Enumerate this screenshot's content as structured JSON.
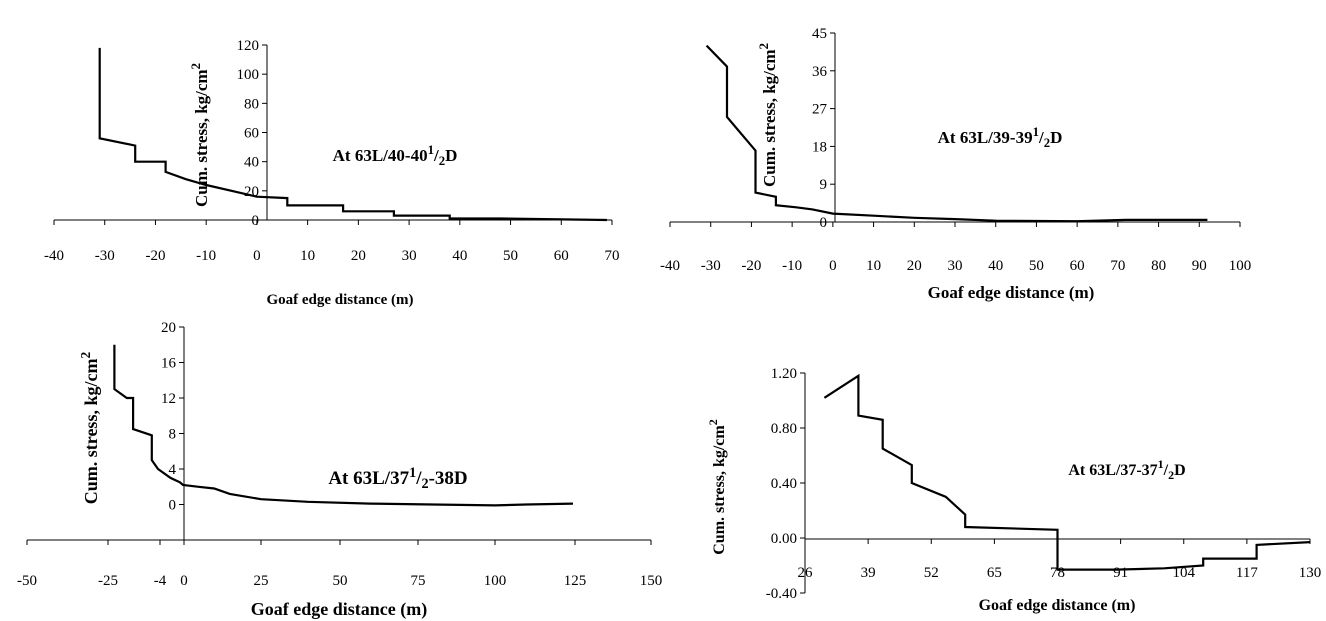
{
  "chart_data": [
    {
      "type": "line",
      "xlabel": "Goaf edge distance (m)",
      "ylabel": "Cum. stress, kg/cm",
      "ylabel_sup": "2",
      "annotation": {
        "pre": "At 63L/40-40",
        "sup": "1",
        "mid": "/",
        "sub": "2",
        "post": "D"
      },
      "xlim": [
        -40,
        70
      ],
      "ylim": [
        0,
        120
      ],
      "xticks": [
        "-40",
        "-30",
        "-20",
        "-10",
        "0",
        "10",
        "20",
        "30",
        "40",
        "50",
        "60",
        "70"
      ],
      "yticks": [
        "0",
        "20",
        "40",
        "60",
        "80",
        "100",
        "120"
      ],
      "x": [
        -31,
        -31,
        -24,
        -24,
        -18,
        -18,
        -14,
        -10,
        -5,
        0,
        6,
        6,
        17,
        17,
        27,
        27,
        38,
        38,
        48,
        69
      ],
      "y": [
        118,
        56,
        51,
        40,
        40,
        33,
        28,
        24,
        20,
        16,
        15,
        10,
        10,
        6,
        6,
        3,
        3,
        1,
        1,
        0
      ]
    },
    {
      "type": "line",
      "xlabel": "Goaf edge distance (m)",
      "ylabel": "Cum. stress, kg/cm",
      "ylabel_sup": "2",
      "annotation": {
        "pre": "At 63L/39-39",
        "sup": "1",
        "mid": "/",
        "sub": "2",
        "post": "D"
      },
      "xlim": [
        -40,
        100
      ],
      "ylim": [
        0,
        45
      ],
      "xticks": [
        "-40",
        "-30",
        "-20",
        "-10",
        "0",
        "10",
        "20",
        "30",
        "40",
        "50",
        "60",
        "70",
        "80",
        "90",
        "100"
      ],
      "yticks": [
        "0",
        "9",
        "18",
        "27",
        "36",
        "45"
      ],
      "x": [
        -31,
        -26,
        -26,
        -19,
        -19,
        -14,
        -14,
        -9,
        -5,
        0,
        10,
        20,
        30,
        40,
        60,
        72,
        92
      ],
      "y": [
        42,
        37,
        25,
        17,
        7,
        6,
        4,
        3.5,
        3,
        2,
        1.5,
        1,
        0.7,
        0.3,
        0.2,
        0.5,
        0.5
      ]
    },
    {
      "type": "line",
      "xlabel": "Goaf edge distance (m)",
      "ylabel": "Cum. stress, kg/cm",
      "ylabel_sup": "2",
      "annotation": {
        "pre": "At 63L/37",
        "sup": "1",
        "mid": "/",
        "sub": "2",
        "post": "-38D"
      },
      "xlim": [
        -50,
        150
      ],
      "ylim": [
        -4,
        20
      ],
      "xticks": [
        "-50",
        "-25",
        "-4",
        "0",
        "25",
        "50",
        "75",
        "100",
        "125",
        "150"
      ],
      "ytick_values": [
        0,
        4,
        8,
        12,
        16,
        20
      ],
      "yticks": [
        "0",
        "4",
        "8",
        "12",
        "16",
        "20"
      ],
      "x": [
        -22,
        -22,
        -18,
        -16,
        -16,
        -10,
        -10,
        -8,
        -4,
        -1,
        0,
        5,
        10,
        15,
        25,
        40,
        60,
        80,
        100,
        110,
        125
      ],
      "y": [
        18,
        13,
        12,
        12,
        8.5,
        7.8,
        5,
        4,
        3,
        2.5,
        2.2,
        2,
        1.8,
        1.2,
        0.6,
        0.3,
        0.1,
        0,
        -0.1,
        0,
        0.1
      ]
    },
    {
      "type": "line",
      "xlabel": "Goaf edge distance (m)",
      "ylabel": "Cum. stress,  kg/cm",
      "ylabel_sup": "2",
      "annotation": {
        "pre": "At 63L/37-37",
        "sup": "1",
        "mid": "/",
        "sub": "2",
        "post": "D"
      },
      "xlim": [
        26,
        130
      ],
      "ylim": [
        -0.4,
        1.2
      ],
      "xticks": [
        "26",
        "39",
        "52",
        "65",
        "78",
        "91",
        "104",
        "117",
        "130"
      ],
      "yticks": [
        "-0.40",
        "0.00",
        "0.40",
        "0.80",
        "1.20"
      ],
      "x": [
        30,
        37,
        37,
        42,
        42,
        48,
        48,
        55,
        55,
        59,
        59,
        78,
        78,
        90,
        100,
        108,
        108,
        119,
        119,
        130
      ],
      "y": [
        1.02,
        1.18,
        0.89,
        0.86,
        0.65,
        0.53,
        0.4,
        0.3,
        0.3,
        0.17,
        0.08,
        0.06,
        -0.23,
        -0.23,
        -0.22,
        -0.2,
        -0.15,
        -0.15,
        -0.05,
        -0.03
      ]
    }
  ]
}
